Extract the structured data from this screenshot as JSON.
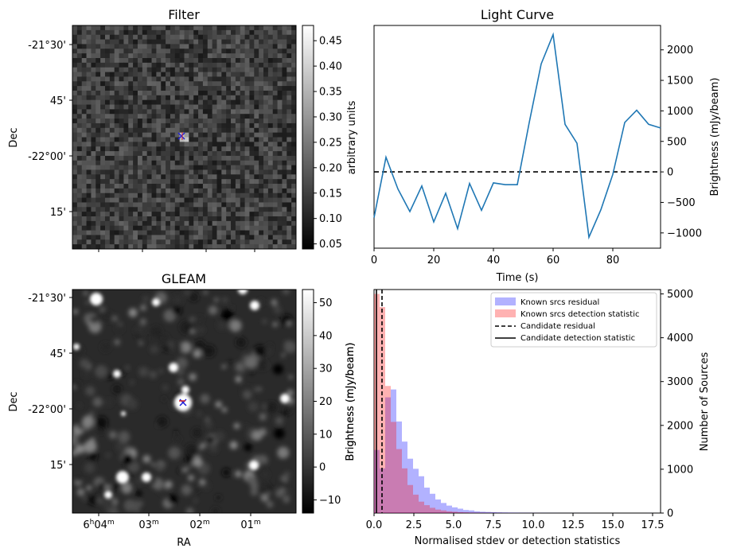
{
  "panels": {
    "filter": {
      "title": "Filter",
      "ylabel": "Dec",
      "yticks": [
        "-21°30'",
        "45'",
        "-22°00'",
        "15'"
      ],
      "colorbar": {
        "label": "arbitrary units",
        "ticks": [
          "0.05",
          "0.10",
          "0.15",
          "0.20",
          "0.25",
          "0.30",
          "0.35",
          "0.40",
          "0.45"
        ],
        "range": [
          0.04,
          0.48
        ],
        "cmap": "gray"
      },
      "marker_colors": {
        "x_marker": "#1f1fd6",
        "plus_marker": "#d62728"
      }
    },
    "gleam": {
      "title": "GLEAM",
      "ylabel": "Dec",
      "xlabel": "RA",
      "yticks": [
        "-21°30'",
        "45'",
        "-22°00'",
        "15'"
      ],
      "xticks": [
        "6h04m",
        "03m",
        "02m",
        "01m"
      ],
      "colorbar": {
        "label": "Brightness (mJy/beam)",
        "ticks": [
          "−10",
          "0",
          "10",
          "20",
          "30",
          "40",
          "50"
        ],
        "range": [
          -14,
          54
        ],
        "cmap": "gray"
      }
    }
  },
  "chart_data": [
    {
      "type": "line",
      "title": "Light Curve",
      "xlabel": "Time (s)",
      "ylabel": "Brightness (mJy/beam)",
      "xlim": [
        0,
        96
      ],
      "ylim": [
        -1250,
        2400
      ],
      "xticks": [
        "0",
        "20",
        "40",
        "60",
        "80"
      ],
      "yticks": [
        "−1000",
        "−500",
        "0",
        "500",
        "1000",
        "1500",
        "2000"
      ],
      "yaxis_side": "right",
      "reference_line": {
        "y": 0,
        "style": "dashed",
        "color": "#000000"
      },
      "series": [
        {
          "color": "#1f77b4",
          "x": [
            0,
            4,
            8,
            12,
            16,
            20,
            24,
            28,
            32,
            36,
            40,
            44,
            48,
            52,
            56,
            60,
            64,
            68,
            72,
            76,
            80,
            84,
            88,
            92,
            96
          ],
          "y": [
            -750,
            240,
            -280,
            -650,
            -230,
            -820,
            -350,
            -930,
            -190,
            -630,
            -180,
            -210,
            -210,
            810,
            1770,
            2250,
            780,
            470,
            -1070,
            -620,
            -40,
            810,
            1010,
            780,
            720
          ]
        }
      ]
    },
    {
      "type": "histogram",
      "xlabel": "Normalised stdev or detection statistics",
      "ylabel_left": "Brightness (mJy/beam)",
      "ylabel_right": "Number of Sources",
      "xlim": [
        0,
        18
      ],
      "ylim": [
        0,
        5100
      ],
      "xticks": [
        "0.0",
        "2.5",
        "5.0",
        "7.5",
        "10.0",
        "12.5",
        "15.0",
        "17.5"
      ],
      "yticks": [
        "0",
        "1000",
        "2000",
        "3000",
        "4000",
        "5000"
      ],
      "legend_position": "top-right",
      "bin_width": 0.35,
      "series": [
        {
          "name": "Known srcs residual",
          "color": "#0000ff",
          "alpha": 0.3,
          "bin_start": 0.0,
          "values": [
            1440,
            1020,
            2640,
            2820,
            2090,
            1630,
            1240,
            1010,
            840,
            580,
            440,
            310,
            230,
            170,
            130,
            100,
            70,
            60,
            40,
            30,
            25,
            20,
            15,
            12,
            10,
            8,
            6,
            5,
            4,
            3,
            3,
            2,
            2,
            1,
            1,
            1,
            1,
            1,
            1,
            0,
            0,
            0,
            0,
            0,
            0,
            0,
            0,
            0,
            0,
            1
          ]
        },
        {
          "name": "Known srcs detection statistic",
          "color": "#ff0000",
          "alpha": 0.3,
          "bin_start": 0.0,
          "values": [
            5000,
            4700,
            2900,
            2080,
            1460,
            1020,
            640,
            420,
            260,
            180,
            120,
            80,
            60,
            40,
            30,
            20,
            15,
            10,
            8,
            6,
            5,
            4,
            3,
            2,
            2,
            1,
            1,
            1,
            1,
            1
          ]
        }
      ],
      "markers": [
        {
          "name": "Candidate residual",
          "x": 0.5,
          "style": "dashed",
          "color": "#000000"
        },
        {
          "name": "Candidate detection statistic",
          "x": 0.15,
          "style": "solid",
          "color": "#000000"
        }
      ]
    }
  ]
}
